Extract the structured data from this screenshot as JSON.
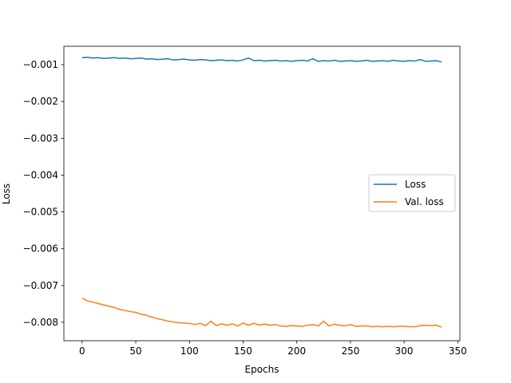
{
  "chart_data": {
    "type": "line",
    "title": "",
    "xlabel": "Epochs",
    "ylabel": "Loss",
    "xlim": [
      -17,
      352
    ],
    "ylim": [
      -0.0085,
      -0.0005
    ],
    "x_ticks": [
      0,
      50,
      100,
      150,
      200,
      250,
      300,
      350
    ],
    "y_ticks": [
      -0.001,
      -0.002,
      -0.003,
      -0.004,
      -0.005,
      -0.006,
      -0.007,
      -0.008
    ],
    "x_tick_labels": [
      "0",
      "50",
      "100",
      "150",
      "200",
      "250",
      "300",
      "350"
    ],
    "y_tick_labels": [
      "−0.001",
      "−0.002",
      "−0.003",
      "−0.004",
      "−0.005",
      "−0.006",
      "−0.007",
      "−0.008"
    ],
    "grid": false,
    "legend_position": "center-right",
    "series": [
      {
        "name": "Loss",
        "color": "#1f77b4",
        "x": [
          0,
          5,
          10,
          15,
          20,
          25,
          30,
          35,
          40,
          45,
          50,
          55,
          60,
          65,
          70,
          75,
          80,
          85,
          90,
          95,
          100,
          105,
          110,
          115,
          120,
          125,
          130,
          135,
          140,
          145,
          150,
          155,
          160,
          165,
          170,
          175,
          180,
          185,
          190,
          195,
          200,
          205,
          210,
          215,
          220,
          225,
          230,
          235,
          240,
          245,
          250,
          255,
          260,
          265,
          270,
          275,
          280,
          285,
          290,
          295,
          300,
          305,
          310,
          315,
          320,
          325,
          330,
          335
        ],
        "y": [
          -0.00081,
          -0.0008,
          -0.00082,
          -0.00081,
          -0.00083,
          -0.00082,
          -0.00081,
          -0.00083,
          -0.00082,
          -0.00084,
          -0.00083,
          -0.00082,
          -0.00085,
          -0.00084,
          -0.00086,
          -0.00085,
          -0.00084,
          -0.00087,
          -0.00086,
          -0.00085,
          -0.00087,
          -0.00088,
          -0.00086,
          -0.00087,
          -0.00089,
          -0.00088,
          -0.00087,
          -0.00089,
          -0.00088,
          -0.0009,
          -0.00087,
          -0.00082,
          -0.00089,
          -0.00088,
          -0.0009,
          -0.00089,
          -0.00088,
          -0.0009,
          -0.00089,
          -0.00091,
          -0.00089,
          -0.00088,
          -0.0009,
          -0.00084,
          -0.00091,
          -0.00089,
          -0.0009,
          -0.00088,
          -0.00091,
          -0.0009,
          -0.00089,
          -0.00091,
          -0.0009,
          -0.00088,
          -0.00091,
          -0.0009,
          -0.00089,
          -0.00091,
          -0.00088,
          -0.0009,
          -0.00091,
          -0.00089,
          -0.0009,
          -0.00086,
          -0.00091,
          -0.0009,
          -0.00089,
          -0.00093
        ]
      },
      {
        "name": "Val. loss",
        "color": "#ff7f0e",
        "x": [
          0,
          5,
          10,
          15,
          20,
          25,
          30,
          35,
          40,
          45,
          50,
          55,
          60,
          65,
          70,
          75,
          80,
          85,
          90,
          95,
          100,
          105,
          110,
          115,
          120,
          125,
          130,
          135,
          140,
          145,
          150,
          155,
          160,
          165,
          170,
          175,
          180,
          185,
          190,
          195,
          200,
          205,
          210,
          215,
          220,
          225,
          230,
          235,
          240,
          245,
          250,
          255,
          260,
          265,
          270,
          275,
          280,
          285,
          290,
          295,
          300,
          305,
          310,
          315,
          320,
          325,
          330,
          335
        ],
        "y": [
          -0.00734,
          -0.00742,
          -0.00745,
          -0.00749,
          -0.00753,
          -0.00756,
          -0.0076,
          -0.00765,
          -0.00768,
          -0.00771,
          -0.00773,
          -0.00778,
          -0.00781,
          -0.00786,
          -0.0079,
          -0.00793,
          -0.00797,
          -0.00799,
          -0.00801,
          -0.00802,
          -0.00803,
          -0.00806,
          -0.00803,
          -0.00809,
          -0.00797,
          -0.00809,
          -0.00804,
          -0.00808,
          -0.00804,
          -0.0081,
          -0.00802,
          -0.00808,
          -0.00803,
          -0.00807,
          -0.00805,
          -0.00808,
          -0.00806,
          -0.0081,
          -0.00811,
          -0.00809,
          -0.0081,
          -0.00811,
          -0.00808,
          -0.00806,
          -0.0081,
          -0.00797,
          -0.0081,
          -0.00805,
          -0.00808,
          -0.0081,
          -0.00806,
          -0.00811,
          -0.0081,
          -0.0081,
          -0.00812,
          -0.00811,
          -0.00812,
          -0.00811,
          -0.00812,
          -0.00811,
          -0.00811,
          -0.00812,
          -0.00812,
          -0.00809,
          -0.00808,
          -0.00809,
          -0.00808,
          -0.00813
        ]
      }
    ]
  }
}
